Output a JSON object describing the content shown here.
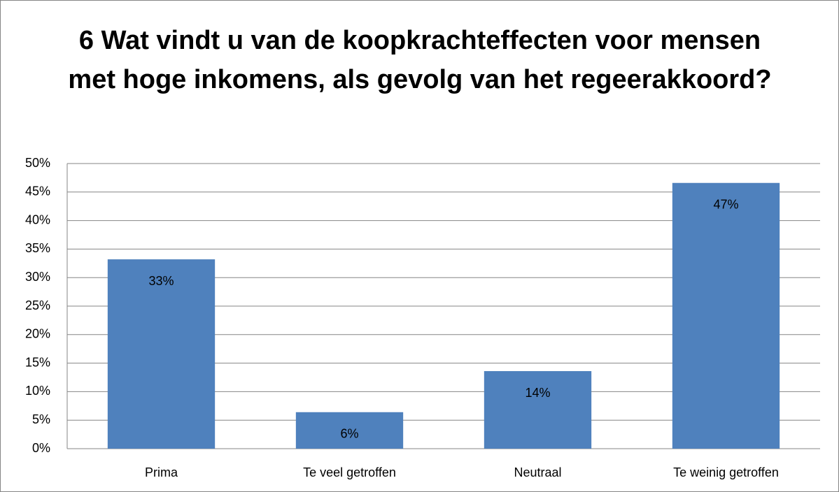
{
  "chart_data": {
    "type": "bar",
    "title": "6 Wat vindt u van de koopkrachteffecten voor mensen met hoge inkomens, als gevolg van het regeerakkoord?",
    "categories": [
      "Prima",
      "Te veel getroffen",
      "Neutraal",
      "Te weinig getroffen"
    ],
    "values": [
      33.2,
      6.4,
      13.6,
      46.6
    ],
    "value_labels": [
      "33%",
      "6%",
      "14%",
      "47%"
    ],
    "color": "#4f81bd",
    "ylim": [
      0,
      50
    ],
    "yticks": [
      {
        "value": 0,
        "label": "0%"
      },
      {
        "value": 5,
        "label": "5%"
      },
      {
        "value": 10,
        "label": "10%"
      },
      {
        "value": 15,
        "label": "15%"
      },
      {
        "value": 20,
        "label": "20%"
      },
      {
        "value": 25,
        "label": "25%"
      },
      {
        "value": 30,
        "label": "30%"
      },
      {
        "value": 35,
        "label": "35%"
      },
      {
        "value": 40,
        "label": "40%"
      },
      {
        "value": 45,
        "label": "45%"
      },
      {
        "value": 50,
        "label": "50%"
      }
    ],
    "grid": true
  }
}
